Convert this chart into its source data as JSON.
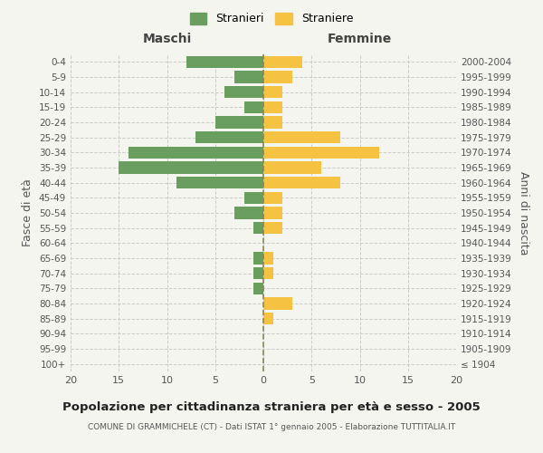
{
  "age_groups": [
    "100+",
    "95-99",
    "90-94",
    "85-89",
    "80-84",
    "75-79",
    "70-74",
    "65-69",
    "60-64",
    "55-59",
    "50-54",
    "45-49",
    "40-44",
    "35-39",
    "30-34",
    "25-29",
    "20-24",
    "15-19",
    "10-14",
    "5-9",
    "0-4"
  ],
  "birth_years": [
    "≤ 1904",
    "1905-1909",
    "1910-1914",
    "1915-1919",
    "1920-1924",
    "1925-1929",
    "1930-1934",
    "1935-1939",
    "1940-1944",
    "1945-1949",
    "1950-1954",
    "1955-1959",
    "1960-1964",
    "1965-1969",
    "1970-1974",
    "1975-1979",
    "1980-1984",
    "1985-1989",
    "1990-1994",
    "1995-1999",
    "2000-2004"
  ],
  "maschi": [
    0,
    0,
    0,
    0,
    0,
    1,
    1,
    1,
    0,
    1,
    3,
    2,
    9,
    15,
    14,
    7,
    5,
    2,
    4,
    3,
    8
  ],
  "femmine": [
    0,
    0,
    0,
    1,
    3,
    0,
    1,
    1,
    0,
    2,
    2,
    2,
    8,
    6,
    12,
    8,
    2,
    2,
    2,
    3,
    4
  ],
  "maschi_color": "#6a9e5f",
  "femmine_color": "#f5c242",
  "background_color": "#f5f5f0",
  "grid_color": "#cccccc",
  "title": "Popolazione per cittadinanza straniera per età e sesso - 2005",
  "subtitle": "COMUNE DI GRAMMICHELE (CT) - Dati ISTAT 1° gennaio 2005 - Elaborazione TUTTITALIA.IT",
  "xlabel_left": "Maschi",
  "xlabel_right": "Femmine",
  "ylabel_left": "Fasce di età",
  "ylabel_right": "Anni di nascita",
  "legend_stranieri": "Stranieri",
  "legend_straniere": "Straniere",
  "xlim": 20,
  "bar_height": 0.8
}
